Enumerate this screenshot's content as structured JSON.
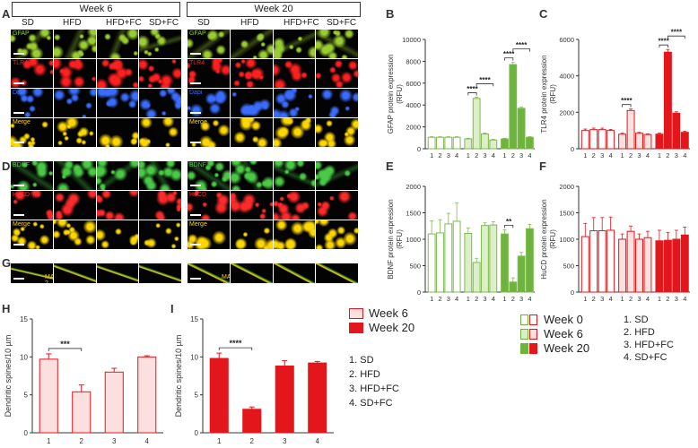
{
  "panels": {
    "A": "A",
    "B": "B",
    "C": "C",
    "D": "D",
    "E": "E",
    "F": "F",
    "G": "G",
    "H": "H",
    "I": "I"
  },
  "micrographs": {
    "week6_title": "Week 6",
    "week20_title": "Week 20",
    "columns": [
      "SD",
      "HFD",
      "HFD+FC",
      "SD+FC"
    ],
    "row_labels_AD": [
      "GFAP",
      "TLR4",
      "Dapi",
      "Merge",
      "BDNF",
      "HuCD",
      "Merge"
    ],
    "row_label_G": "MAP-2"
  },
  "colors": {
    "green_dark": "#6db33f",
    "green_light": "#dcefc8",
    "green_outline": "#7dbb4a",
    "red_dark": "#e3161b",
    "red_light": "#fbe0df",
    "red_outline": "#e3161b",
    "gfap": "#9acd32",
    "tlr4": "#ff2020",
    "dapi": "#3a6cff",
    "merge": "#ffd700",
    "bdnf": "#49c944",
    "hucd": "#ff2a2a",
    "map2": "#ffd200"
  },
  "chart_data": [
    {
      "id": "B",
      "type": "bar",
      "color": "green",
      "ylabel": "GFAP protein expression (RFU)",
      "ylim": [
        0,
        10000
      ],
      "yticks": [
        0,
        2000,
        4000,
        6000,
        8000,
        10000
      ],
      "categories": [
        "1",
        "2",
        "3",
        "4"
      ],
      "series": [
        {
          "name": "Week 0",
          "values": [
            1050,
            1050,
            1050,
            1050
          ],
          "err": [
            50,
            50,
            50,
            50
          ]
        },
        {
          "name": "Week 6",
          "values": [
            900,
            4600,
            1350,
            800
          ],
          "err": [
            60,
            120,
            80,
            60
          ]
        },
        {
          "name": "Week 20",
          "values": [
            900,
            7700,
            3700,
            1050
          ],
          "err": [
            60,
            200,
            100,
            60
          ]
        }
      ],
      "sig": [
        {
          "series": 1,
          "pairs": [
            [
              0,
              1,
              "****"
            ],
            [
              1,
              3,
              "****"
            ]
          ]
        },
        {
          "series": 2,
          "pairs": [
            [
              0,
              1,
              "****"
            ],
            [
              1,
              3,
              "****"
            ]
          ]
        }
      ]
    },
    {
      "id": "C",
      "type": "bar",
      "color": "red",
      "ylabel": "TLR4 protein expression (RFU)",
      "ylim": [
        0,
        6000
      ],
      "yticks": [
        0,
        2000,
        4000,
        6000
      ],
      "categories": [
        "1",
        "2",
        "3",
        "4"
      ],
      "series": [
        {
          "name": "Week 0",
          "values": [
            1000,
            1050,
            1050,
            1000
          ],
          "err": [
            80,
            80,
            80,
            60
          ]
        },
        {
          "name": "Week 6",
          "values": [
            800,
            2100,
            850,
            780
          ],
          "err": [
            50,
            80,
            50,
            40
          ]
        },
        {
          "name": "Week 20",
          "values": [
            800,
            5300,
            1950,
            900
          ],
          "err": [
            60,
            150,
            80,
            60
          ]
        }
      ],
      "sig": [
        {
          "series": 1,
          "pairs": [
            [
              0,
              1,
              "****"
            ]
          ]
        },
        {
          "series": 2,
          "pairs": [
            [
              0,
              1,
              "****"
            ],
            [
              1,
              3,
              "****"
            ]
          ]
        }
      ]
    },
    {
      "id": "E",
      "type": "bar",
      "color": "green",
      "ylabel": "BDNF protein expression (RFU)",
      "ylim": [
        0,
        2000
      ],
      "yticks": [
        0,
        500,
        1000,
        1500,
        2000
      ],
      "categories": [
        "1",
        "2",
        "3",
        "4"
      ],
      "series": [
        {
          "name": "Week 0",
          "values": [
            1100,
            1120,
            1290,
            1340
          ],
          "err": [
            250,
            250,
            200,
            350
          ]
        },
        {
          "name": "Week 6",
          "values": [
            1110,
            560,
            1260,
            1270
          ],
          "err": [
            100,
            80,
            50,
            60
          ]
        },
        {
          "name": "Week 20",
          "values": [
            1100,
            190,
            680,
            1200
          ],
          "err": [
            80,
            80,
            70,
            80
          ]
        }
      ],
      "sig": [
        {
          "series": 2,
          "pairs": [
            [
              0,
              1,
              "**"
            ]
          ]
        }
      ]
    },
    {
      "id": "F",
      "type": "bar",
      "color": "red",
      "ylabel": "HuCD protein expression (RFU)",
      "ylim": [
        0,
        2000
      ],
      "yticks": [
        0,
        500,
        1000,
        1500,
        2000
      ],
      "categories": [
        "1",
        "2",
        "3",
        "4"
      ],
      "series": [
        {
          "name": "Week 0",
          "values": [
            1050,
            1160,
            1160,
            1170
          ],
          "err": [
            250,
            250,
            250,
            250
          ]
        },
        {
          "name": "Week 6",
          "values": [
            1000,
            1150,
            1000,
            1030
          ],
          "err": [
            100,
            100,
            100,
            120
          ]
        },
        {
          "name": "Week 20",
          "values": [
            970,
            980,
            1000,
            1080
          ],
          "err": [
            200,
            150,
            170,
            150
          ]
        }
      ],
      "sig": []
    },
    {
      "id": "H",
      "type": "bar",
      "fill": "light",
      "ylabel": "Dendritic spines/10 µm",
      "ylim": [
        0,
        15
      ],
      "yticks": [
        0,
        5,
        10,
        15
      ],
      "categories": [
        "1",
        "2",
        "3",
        "4"
      ],
      "values": [
        9.7,
        5.4,
        8.0,
        10.0
      ],
      "err": [
        0.7,
        0.9,
        0.5,
        0.15
      ],
      "sig": [
        [
          0,
          1,
          "***"
        ]
      ]
    },
    {
      "id": "I",
      "type": "bar",
      "fill": "dark",
      "ylabel": "Dendritic spines/10 µm",
      "ylim": [
        0,
        15
      ],
      "yticks": [
        0,
        5,
        10,
        15
      ],
      "categories": [
        "1",
        "2",
        "3",
        "4"
      ],
      "values": [
        9.8,
        3.1,
        8.8,
        9.2
      ],
      "err": [
        0.7,
        0.3,
        0.7,
        0.2
      ],
      "sig": [
        [
          0,
          1,
          "****"
        ]
      ]
    }
  ],
  "legend_HI": {
    "entries": [
      "Week 6",
      "Week 20"
    ],
    "groups": [
      "1. SD",
      "2. HFD",
      "3. HFD+FC",
      "4. SD+FC"
    ]
  },
  "legend_main": {
    "entries": [
      "Week 0",
      "Week 6",
      "Week 20"
    ],
    "groups": [
      "1. SD",
      "2. HFD",
      "3. HFD+FC",
      "4. SD+FC"
    ]
  }
}
